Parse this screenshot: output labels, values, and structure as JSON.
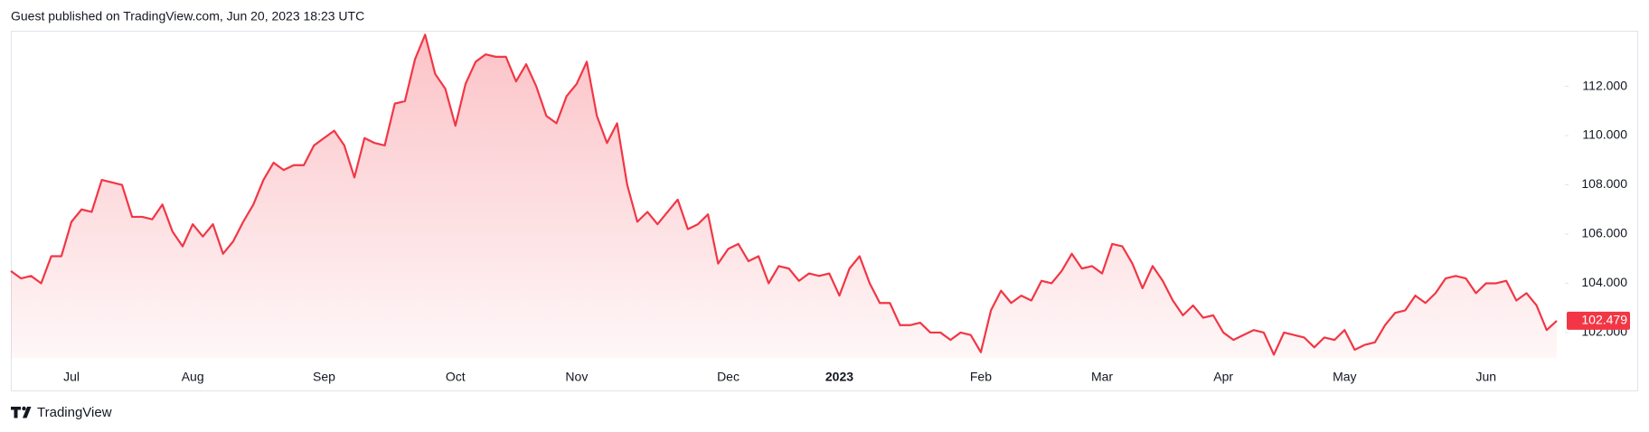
{
  "header": {
    "text": "Guest published on TradingView.com, Jun 20, 2023 18:23 UTC"
  },
  "footer": {
    "brand": "TradingView"
  },
  "chart_data": {
    "type": "area",
    "categories": [
      null,
      null,
      null,
      null,
      null,
      null,
      "Jul",
      null,
      null,
      null,
      null,
      null,
      null,
      null,
      null,
      null,
      null,
      null,
      "Aug",
      null,
      null,
      null,
      null,
      null,
      null,
      null,
      null,
      null,
      null,
      null,
      null,
      "Sep",
      null,
      null,
      null,
      null,
      null,
      null,
      null,
      null,
      null,
      null,
      null,
      null,
      "Oct",
      null,
      null,
      null,
      null,
      null,
      null,
      null,
      null,
      null,
      null,
      null,
      "Nov",
      null,
      null,
      null,
      null,
      null,
      null,
      null,
      null,
      null,
      null,
      null,
      null,
      null,
      null,
      "Dec",
      null,
      null,
      null,
      null,
      null,
      null,
      null,
      null,
      null,
      null,
      "2023",
      null,
      null,
      null,
      null,
      null,
      null,
      null,
      null,
      null,
      null,
      null,
      null,
      null,
      "Feb",
      null,
      null,
      null,
      null,
      null,
      null,
      null,
      null,
      null,
      null,
      null,
      "Mar",
      null,
      null,
      null,
      null,
      null,
      null,
      null,
      null,
      null,
      null,
      null,
      "Apr",
      null,
      null,
      null,
      null,
      null,
      null,
      null,
      null,
      null,
      null,
      null,
      "May",
      null,
      null,
      null,
      null,
      null,
      null,
      null,
      null,
      null,
      null,
      null,
      null,
      null,
      "Jun",
      null,
      null,
      null,
      null,
      null,
      null,
      null
    ],
    "series": [
      {
        "color": "#f23645",
        "values": [
          104.5,
          104.2,
          104.3,
          104.0,
          105.1,
          105.1,
          106.5,
          107.0,
          106.9,
          108.2,
          108.1,
          108.0,
          106.7,
          106.7,
          106.6,
          107.2,
          106.1,
          105.5,
          106.4,
          105.9,
          106.4,
          105.2,
          105.7,
          106.5,
          107.2,
          108.2,
          108.9,
          108.6,
          108.8,
          108.8,
          109.6,
          109.9,
          110.2,
          109.6,
          108.3,
          109.9,
          109.7,
          109.6,
          111.3,
          111.4,
          113.1,
          114.1,
          112.5,
          111.9,
          110.4,
          112.1,
          113.0,
          113.3,
          113.2,
          113.2,
          112.2,
          112.9,
          112.0,
          110.8,
          110.5,
          111.6,
          112.1,
          113.0,
          110.8,
          109.7,
          110.5,
          108.0,
          106.5,
          106.9,
          106.4,
          106.9,
          107.4,
          106.2,
          106.4,
          106.8,
          104.8,
          105.4,
          105.6,
          104.9,
          105.1,
          104.0,
          104.7,
          104.6,
          104.1,
          104.4,
          104.3,
          104.4,
          103.5,
          104.6,
          105.1,
          104.0,
          103.2,
          103.2,
          102.3,
          102.3,
          102.4,
          102.0,
          102.0,
          101.7,
          102.0,
          101.9,
          101.2,
          102.9,
          103.7,
          103.2,
          103.5,
          103.3,
          104.1,
          104.0,
          104.5,
          105.2,
          104.6,
          104.7,
          104.4,
          105.6,
          105.5,
          104.8,
          103.8,
          104.7,
          104.1,
          103.3,
          102.7,
          103.1,
          102.6,
          102.7,
          102.0,
          101.7,
          101.9,
          102.1,
          102.0,
          101.1,
          102.0,
          101.9,
          101.8,
          101.4,
          101.8,
          101.7,
          102.1,
          101.3,
          101.5,
          101.6,
          102.3,
          102.8,
          102.9,
          103.5,
          103.2,
          103.6,
          104.2,
          104.3,
          104.2,
          103.6,
          104.0,
          104.0,
          104.1,
          103.3,
          103.6,
          103.1,
          102.1,
          102.479
        ]
      }
    ],
    "ylim": [
      100.97,
      114.26
    ],
    "yticks": [
      {
        "value": 102,
        "label": "102.000"
      },
      {
        "value": 104,
        "label": "104.000"
      },
      {
        "value": 106,
        "label": "106.000"
      },
      {
        "value": 108,
        "label": "108.000"
      },
      {
        "value": 110,
        "label": "110.000"
      },
      {
        "value": 112,
        "label": "112.000"
      }
    ],
    "grid": false
  }
}
